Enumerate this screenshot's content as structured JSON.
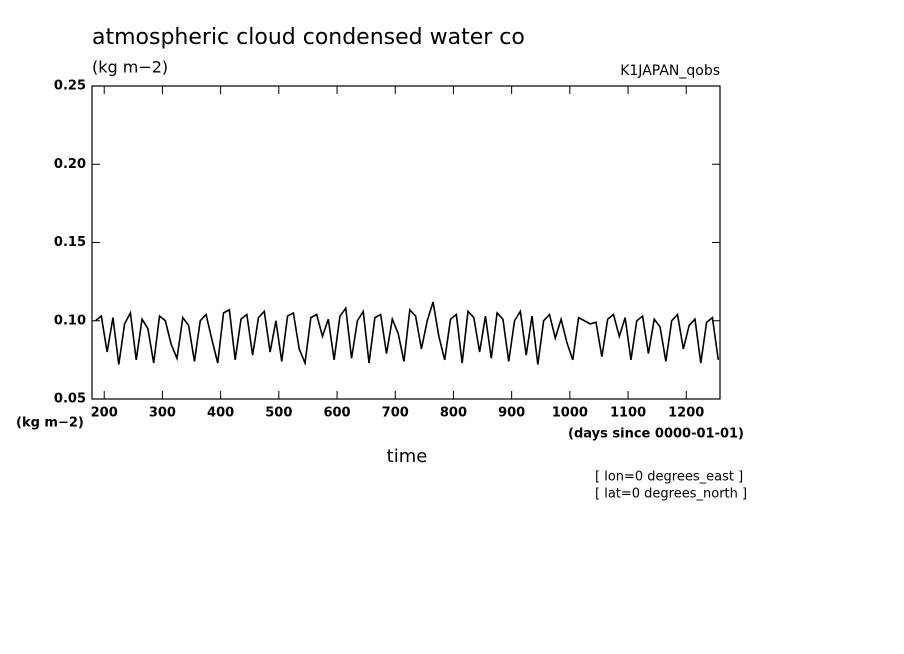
{
  "chart_data": {
    "type": "line",
    "title": "atmospheric cloud condensed water co",
    "subtitle": "(kg m−2)",
    "dataset_label": "K1JAPAN_qobs",
    "y_unit_label": "(kg m−2)",
    "x_unit_label": "(days since 0000-01-01)",
    "x_label": "time",
    "annotations": [
      "[ lon=0 degrees_east ]",
      "[ lat=0 degrees_north ]"
    ],
    "color": "#000000",
    "xlim": [
      179,
      1258
    ],
    "xticks": [
      200,
      300,
      400,
      500,
      600,
      700,
      800,
      900,
      1000,
      1100,
      1200
    ],
    "ylim": [
      0.05,
      0.25
    ],
    "yticks": [
      0.05,
      {
        "value": 0.1,
        "label": "0.10"
      },
      0.15,
      {
        "value": 0.2,
        "label": "0.20"
      },
      0.25
    ],
    "x": [
      185,
      195,
      205,
      215,
      225,
      235,
      245,
      255,
      265,
      275,
      285,
      295,
      305,
      315,
      325,
      335,
      345,
      355,
      365,
      375,
      385,
      395,
      405,
      415,
      425,
      435,
      445,
      455,
      465,
      475,
      485,
      495,
      505,
      515,
      525,
      535,
      545,
      555,
      565,
      575,
      585,
      595,
      605,
      615,
      625,
      635,
      645,
      655,
      665,
      675,
      685,
      695,
      705,
      715,
      725,
      735,
      745,
      755,
      765,
      775,
      785,
      795,
      805,
      815,
      825,
      835,
      845,
      855,
      865,
      875,
      885,
      895,
      905,
      915,
      925,
      935,
      945,
      955,
      965,
      975,
      985,
      995,
      1005,
      1015,
      1025,
      1035,
      1045,
      1055,
      1065,
      1075,
      1085,
      1095,
      1105,
      1115,
      1125,
      1135,
      1145,
      1155,
      1165,
      1175,
      1185,
      1195,
      1205,
      1215,
      1225,
      1235,
      1245,
      1255
    ],
    "values": [
      0.1,
      0.103,
      0.08,
      0.102,
      0.072,
      0.098,
      0.105,
      0.075,
      0.101,
      0.095,
      0.073,
      0.103,
      0.1,
      0.085,
      0.076,
      0.102,
      0.097,
      0.074,
      0.1,
      0.104,
      0.088,
      0.073,
      0.105,
      0.107,
      0.075,
      0.101,
      0.104,
      0.078,
      0.102,
      0.106,
      0.08,
      0.1,
      0.074,
      0.103,
      0.105,
      0.082,
      0.073,
      0.102,
      0.104,
      0.09,
      0.101,
      0.075,
      0.103,
      0.108,
      0.076,
      0.1,
      0.106,
      0.073,
      0.102,
      0.104,
      0.079,
      0.101,
      0.092,
      0.074,
      0.107,
      0.103,
      0.082,
      0.1,
      0.112,
      0.09,
      0.075,
      0.101,
      0.104,
      0.073,
      0.106,
      0.102,
      0.08,
      0.103,
      0.076,
      0.105,
      0.101,
      0.074,
      0.1,
      0.106,
      0.078,
      0.103,
      0.072,
      0.1,
      0.104,
      0.089,
      0.101,
      0.086,
      0.075,
      0.102,
      0.1,
      0.098,
      0.099,
      0.077,
      0.101,
      0.104,
      0.09,
      0.102,
      0.075,
      0.1,
      0.103,
      0.079,
      0.101,
      0.096,
      0.074,
      0.1,
      0.104,
      0.082,
      0.097,
      0.101,
      0.073,
      0.099,
      0.102,
      0.075
    ]
  }
}
